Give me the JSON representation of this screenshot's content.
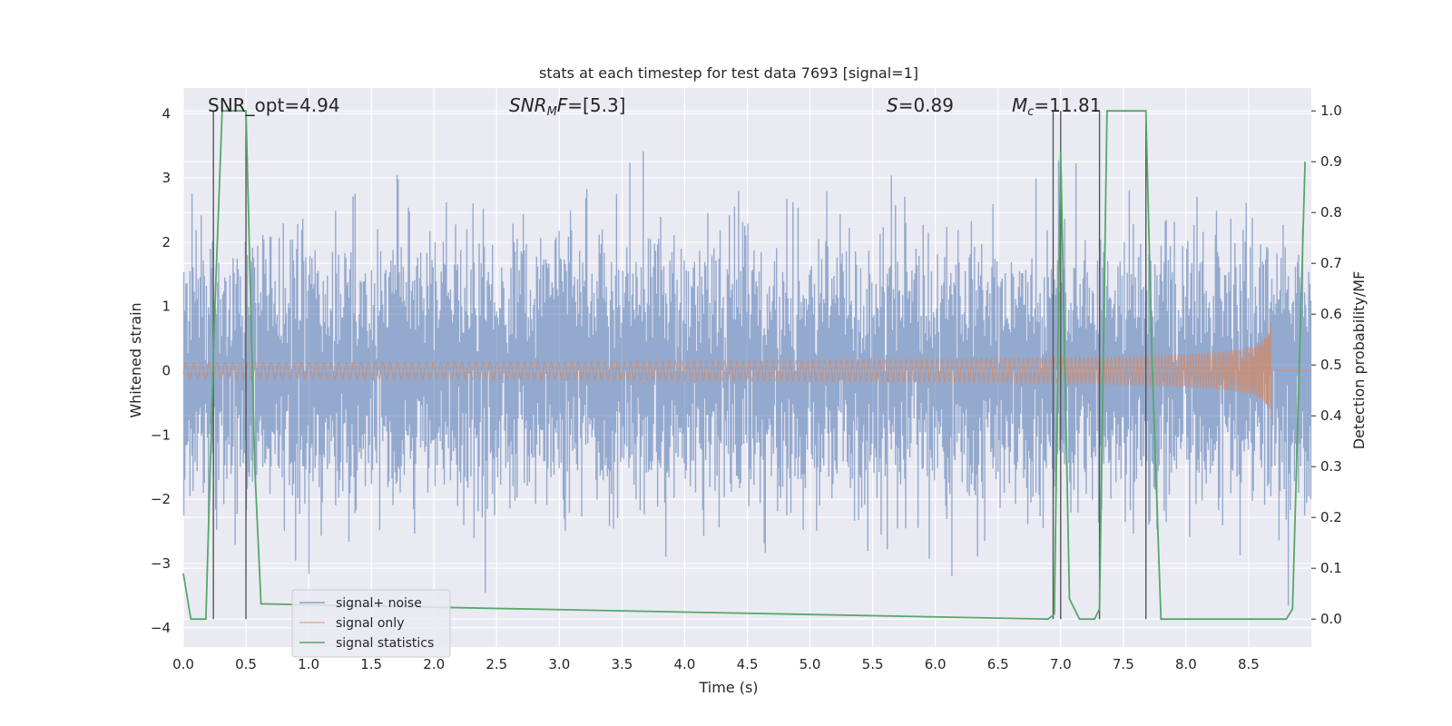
{
  "chart_data": {
    "type": "line",
    "title": "stats at each timestep for test data 7693 [signal=1]",
    "xlabel": "Time (s)",
    "ylabel": "Whitened strain",
    "ylabel_right": "Detection probability/MF",
    "xlim": [
      0.0,
      9.0
    ],
    "ylim": [
      -4.3,
      4.4
    ],
    "ylim_right": [
      -0.055,
      1.045
    ],
    "xticks": [
      "0.0",
      "0.5",
      "1.0",
      "1.5",
      "2.0",
      "2.5",
      "3.0",
      "3.5",
      "4.0",
      "4.5",
      "5.0",
      "5.5",
      "6.0",
      "6.5",
      "7.0",
      "7.5",
      "8.0",
      "8.5"
    ],
    "yticks": [
      "4",
      "3",
      "2",
      "1",
      "0",
      "−1",
      "−2",
      "−3",
      "−4"
    ],
    "yticks_right": [
      "1.0",
      "0.9",
      "0.8",
      "0.7",
      "0.6",
      "0.5",
      "0.4",
      "0.3",
      "0.2",
      "0.1",
      "0.0"
    ],
    "grid": true,
    "legend_position": "lower-left",
    "annotations": {
      "snr_opt": "SNR_opt=4.94",
      "snr_mf_var": "SNR",
      "snr_mf_sub": "M",
      "snr_mf_var2": "F",
      "snr_mf_val": "=[5.3]",
      "s_var": "S",
      "s_val": "=0.89",
      "mc_var": "M",
      "mc_sub": "c",
      "mc_val": "=11.81"
    },
    "series": [
      {
        "name": "signal+ noise",
        "color": "#4c72b0",
        "axis": "left",
        "description": "whitened strain: gaussian noise std ~1, amplitude within about ±4",
        "approx_envelope": {
          "max": 4.0,
          "min": -3.8
        }
      },
      {
        "name": "signal only",
        "color": "#dd8452",
        "axis": "left",
        "description": "chirp waveform, amplitude growing to ~0.85 at merger near t=8.68 s",
        "merger_time": 8.68,
        "peak_amplitude": 0.85
      },
      {
        "name": "signal statistics",
        "color": "#55a868",
        "axis": "right",
        "x": [
          0.0,
          0.06,
          0.18,
          0.25,
          0.31,
          0.5,
          0.53,
          0.57,
          0.62,
          6.9,
          6.95,
          7.0,
          7.07,
          7.15,
          7.27,
          7.31,
          7.37,
          7.68,
          7.73,
          7.8,
          8.4,
          8.8,
          8.85,
          8.95
        ],
        "values": [
          0.09,
          0.0,
          0.0,
          0.6,
          1.0,
          1.0,
          0.7,
          0.3,
          0.03,
          0.0,
          0.01,
          0.92,
          0.04,
          0.0,
          0.0,
          0.02,
          1.0,
          1.0,
          0.5,
          0.0,
          0.0,
          0.0,
          0.02,
          0.9
        ]
      }
    ],
    "vertical_markers": [
      0.24,
      0.5,
      6.94,
      7.0,
      7.31,
      7.68
    ],
    "legend": {
      "items": [
        {
          "label": "signal+ noise",
          "color": "#4c72b0"
        },
        {
          "label": "signal only",
          "color": "#dd8452"
        },
        {
          "label": "signal statistics",
          "color": "#55a868"
        }
      ]
    }
  }
}
